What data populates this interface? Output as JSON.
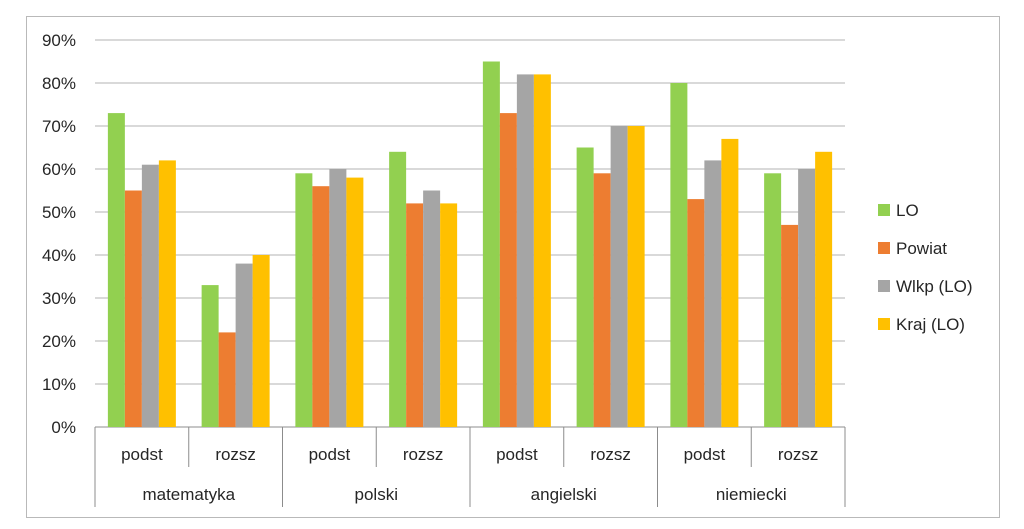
{
  "chart_data": {
    "type": "bar",
    "title": "",
    "xlabel": "",
    "ylabel": "",
    "ylim": [
      0,
      90
    ],
    "y_ticks": [
      0,
      10,
      20,
      30,
      40,
      50,
      60,
      70,
      80,
      90
    ],
    "y_tick_labels": [
      "0%",
      "10%",
      "20%",
      "30%",
      "40%",
      "50%",
      "60%",
      "70%",
      "80%",
      "90%"
    ],
    "grid": true,
    "legend_position": "right",
    "groups": [
      {
        "label": "matematyka",
        "categories": [
          "podst",
          "rozsz"
        ]
      },
      {
        "label": "polski",
        "categories": [
          "podst",
          "rozsz"
        ]
      },
      {
        "label": "angielski",
        "categories": [
          "podst",
          "rozsz"
        ]
      },
      {
        "label": "niemiecki",
        "categories": [
          "podst",
          "rozsz"
        ]
      }
    ],
    "series": [
      {
        "name": "LO",
        "color": "#92d050",
        "values": [
          73,
          33,
          59,
          64,
          85,
          65,
          80,
          59
        ]
      },
      {
        "name": "Powiat",
        "color": "#ed7d31",
        "values": [
          55,
          22,
          56,
          52,
          73,
          59,
          53,
          47
        ]
      },
      {
        "name": "Wlkp (LO)",
        "color": "#a5a5a5",
        "values": [
          61,
          38,
          60,
          55,
          82,
          70,
          62,
          60
        ]
      },
      {
        "name": "Kraj (LO)",
        "color": "#ffc000",
        "values": [
          62,
          40,
          58,
          52,
          82,
          70,
          67,
          64
        ]
      }
    ]
  }
}
